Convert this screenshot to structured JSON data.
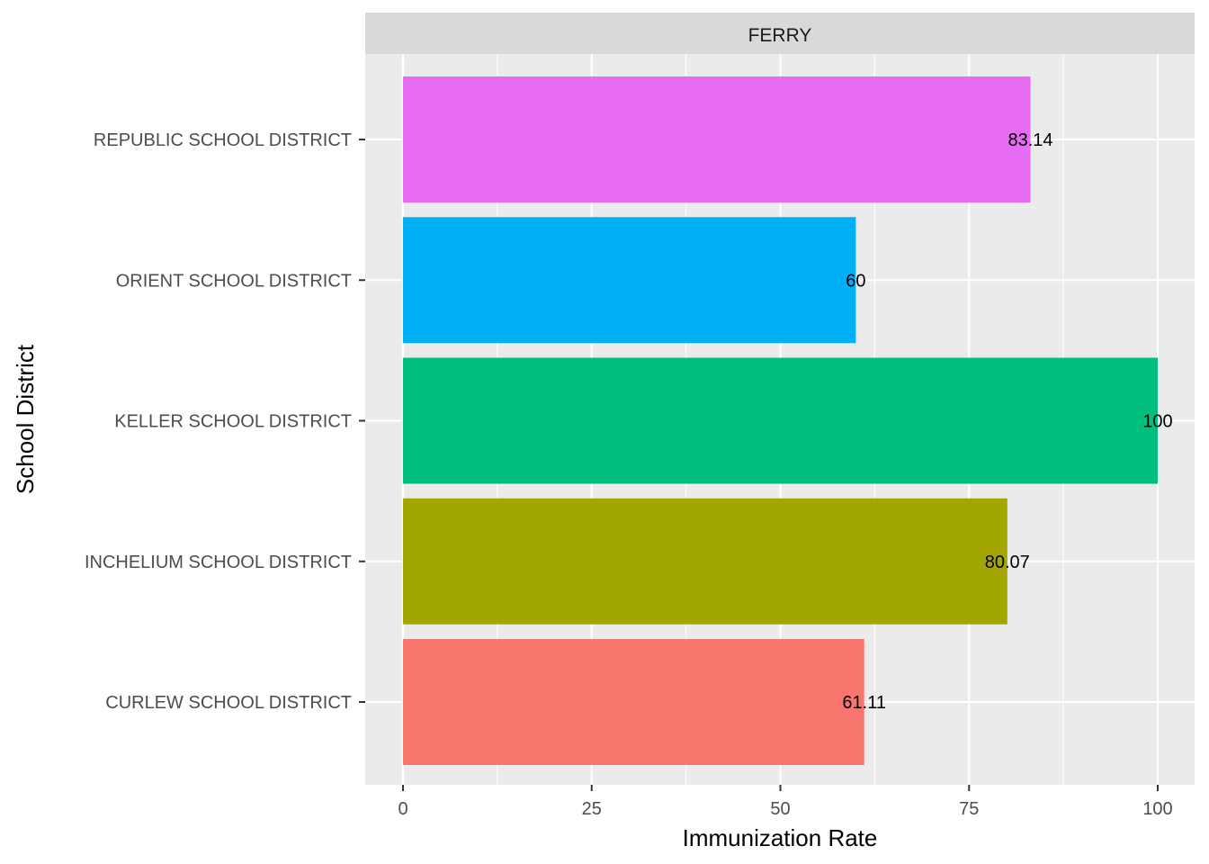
{
  "chart_data": {
    "type": "bar",
    "orientation": "horizontal",
    "facet_label": "FERRY",
    "xlabel": "Immunization Rate",
    "ylabel": "School District",
    "xlim": [
      0,
      100
    ],
    "x_ticks": [
      "0",
      "25",
      "50",
      "75",
      "100"
    ],
    "grid": true,
    "legend": "none",
    "bars": [
      {
        "category": "REPUBLIC SCHOOL DISTRICT",
        "value": 83.14,
        "label": "83.14",
        "color": "#E76BF3"
      },
      {
        "category": "ORIENT SCHOOL DISTRICT",
        "value": 60,
        "label": "60",
        "color": "#00B0F6"
      },
      {
        "category": "KELLER SCHOOL DISTRICT",
        "value": 100,
        "label": "100",
        "color": "#00BF7D"
      },
      {
        "category": "INCHELIUM SCHOOL DISTRICT",
        "value": 80.07,
        "label": "80.07",
        "color": "#A3A500"
      },
      {
        "category": "CURLEW SCHOOL DISTRICT",
        "value": 61.11,
        "label": "61.11",
        "color": "#F8766D"
      }
    ]
  }
}
